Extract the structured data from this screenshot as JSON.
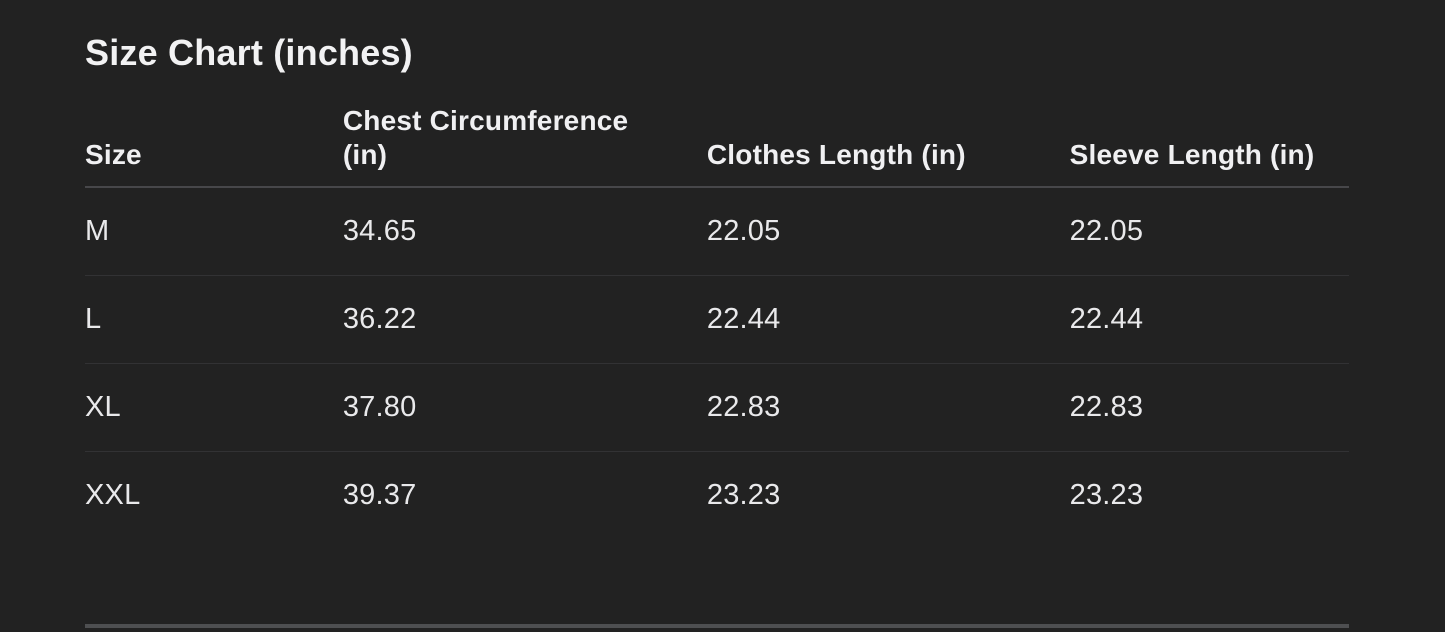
{
  "page": {
    "title": "Size Chart (inches)"
  },
  "table": {
    "headers": [
      "Size",
      "Chest Circumference (in)",
      "Clothes Length (in)",
      "Sleeve Length (in)"
    ],
    "rows": [
      {
        "size": "M",
        "chest": "34.65",
        "clothes": "22.05",
        "sleeve": "22.05"
      },
      {
        "size": "L",
        "chest": "36.22",
        "clothes": "22.44",
        "sleeve": "22.44"
      },
      {
        "size": "XL",
        "chest": "37.80",
        "clothes": "22.83",
        "sleeve": "22.83"
      },
      {
        "size": "XXL",
        "chest": "39.37",
        "clothes": "23.23",
        "sleeve": "23.23"
      }
    ]
  },
  "colors": {
    "background": "#222222",
    "title-text": "#f2f2f3",
    "header-text": "#f0f0f2",
    "body-text": "#e9e9eb",
    "header-divider": "#47474a",
    "row-divider": "#323234",
    "bottom-bar": "#4e4f51"
  }
}
